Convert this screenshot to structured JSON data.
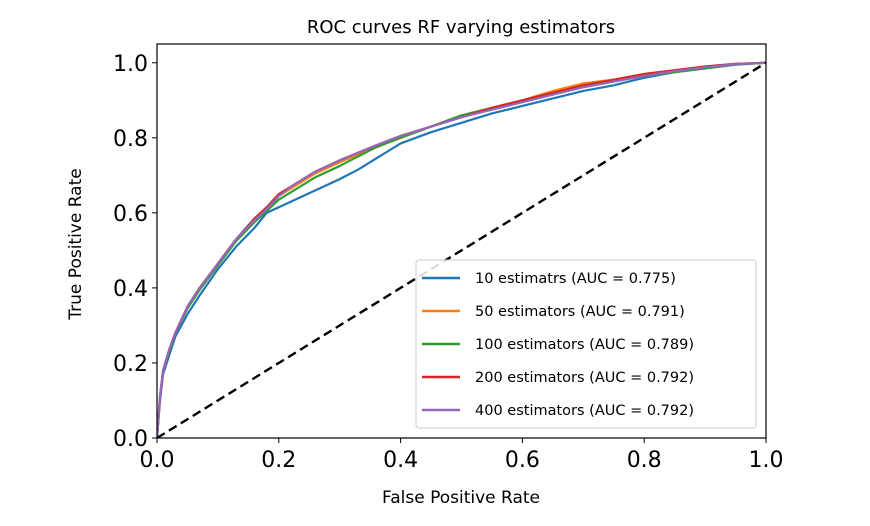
{
  "chart_data": {
    "type": "line",
    "title": "ROC curves RF varying estimators",
    "xlabel": "False Positive Rate",
    "ylabel": "True Positive Rate",
    "xlim": [
      0.0,
      1.0
    ],
    "ylim": [
      0.0,
      1.05
    ],
    "xticks": [
      "0.0",
      "0.2",
      "0.4",
      "0.6",
      "0.8",
      "1.0"
    ],
    "yticks": [
      "0.0",
      "0.2",
      "0.4",
      "0.6",
      "0.8",
      "1.0"
    ],
    "grid": false,
    "legend_position": "lower-right",
    "baseline": {
      "style": "dashed",
      "color": "#000000",
      "x": [
        0.0,
        1.0
      ],
      "y": [
        0.0,
        1.0
      ]
    },
    "series": [
      {
        "name": "10 estimatrs (AUC = 0.775)",
        "color": "#1f77b4",
        "x": [
          0,
          0.005,
          0.01,
          0.02,
          0.03,
          0.05,
          0.07,
          0.1,
          0.13,
          0.16,
          0.18,
          0.2,
          0.22,
          0.24,
          0.26,
          0.28,
          0.3,
          0.33,
          0.36,
          0.4,
          0.45,
          0.5,
          0.55,
          0.6,
          0.65,
          0.7,
          0.75,
          0.8,
          0.85,
          0.9,
          0.95,
          1.0
        ],
        "y": [
          0,
          0.1,
          0.17,
          0.22,
          0.27,
          0.33,
          0.38,
          0.45,
          0.51,
          0.56,
          0.6,
          0.615,
          0.63,
          0.645,
          0.66,
          0.675,
          0.69,
          0.715,
          0.745,
          0.785,
          0.815,
          0.84,
          0.865,
          0.885,
          0.905,
          0.925,
          0.94,
          0.96,
          0.975,
          0.985,
          0.995,
          1.0
        ]
      },
      {
        "name": "50 estimators (AUC = 0.791)",
        "color": "#ff7f0e",
        "x": [
          0,
          0.005,
          0.01,
          0.02,
          0.03,
          0.05,
          0.07,
          0.1,
          0.13,
          0.16,
          0.18,
          0.2,
          0.22,
          0.24,
          0.26,
          0.28,
          0.3,
          0.33,
          0.36,
          0.4,
          0.45,
          0.5,
          0.55,
          0.6,
          0.65,
          0.7,
          0.75,
          0.8,
          0.85,
          0.9,
          0.95,
          1.0
        ],
        "y": [
          0,
          0.11,
          0.18,
          0.235,
          0.28,
          0.35,
          0.4,
          0.465,
          0.53,
          0.58,
          0.61,
          0.645,
          0.665,
          0.685,
          0.705,
          0.72,
          0.735,
          0.755,
          0.775,
          0.8,
          0.83,
          0.855,
          0.88,
          0.9,
          0.925,
          0.945,
          0.955,
          0.97,
          0.98,
          0.99,
          0.997,
          1.0
        ]
      },
      {
        "name": "100 estimators (AUC = 0.789)",
        "color": "#2ca02c",
        "x": [
          0,
          0.005,
          0.01,
          0.02,
          0.03,
          0.05,
          0.07,
          0.1,
          0.13,
          0.16,
          0.18,
          0.2,
          0.22,
          0.24,
          0.26,
          0.28,
          0.3,
          0.33,
          0.36,
          0.4,
          0.45,
          0.5,
          0.55,
          0.6,
          0.65,
          0.7,
          0.75,
          0.8,
          0.85,
          0.9,
          0.95,
          1.0
        ],
        "y": [
          0,
          0.11,
          0.18,
          0.23,
          0.28,
          0.345,
          0.395,
          0.46,
          0.525,
          0.575,
          0.605,
          0.635,
          0.655,
          0.675,
          0.695,
          0.71,
          0.725,
          0.75,
          0.775,
          0.8,
          0.83,
          0.86,
          0.88,
          0.9,
          0.92,
          0.935,
          0.95,
          0.965,
          0.975,
          0.985,
          0.995,
          1.0
        ]
      },
      {
        "name": "200 estimators (AUC = 0.792)",
        "color": "#d62728",
        "x": [
          0,
          0.005,
          0.01,
          0.02,
          0.03,
          0.05,
          0.07,
          0.1,
          0.13,
          0.16,
          0.18,
          0.2,
          0.22,
          0.24,
          0.26,
          0.28,
          0.3,
          0.33,
          0.36,
          0.4,
          0.45,
          0.5,
          0.55,
          0.6,
          0.65,
          0.7,
          0.75,
          0.8,
          0.85,
          0.9,
          0.95,
          1.0
        ],
        "y": [
          0,
          0.11,
          0.18,
          0.235,
          0.28,
          0.35,
          0.4,
          0.465,
          0.53,
          0.585,
          0.615,
          0.65,
          0.67,
          0.69,
          0.71,
          0.725,
          0.74,
          0.76,
          0.78,
          0.805,
          0.83,
          0.855,
          0.88,
          0.9,
          0.92,
          0.94,
          0.955,
          0.97,
          0.98,
          0.99,
          0.997,
          1.0
        ]
      },
      {
        "name": "400 estimators (AUC = 0.792)",
        "color": "#9467bd",
        "x": [
          0,
          0.005,
          0.01,
          0.02,
          0.03,
          0.05,
          0.07,
          0.1,
          0.13,
          0.16,
          0.18,
          0.2,
          0.22,
          0.24,
          0.26,
          0.28,
          0.3,
          0.33,
          0.36,
          0.4,
          0.45,
          0.5,
          0.55,
          0.6,
          0.65,
          0.7,
          0.75,
          0.8,
          0.85,
          0.9,
          0.95,
          1.0
        ],
        "y": [
          0,
          0.11,
          0.18,
          0.235,
          0.28,
          0.35,
          0.4,
          0.465,
          0.53,
          0.58,
          0.61,
          0.645,
          0.67,
          0.69,
          0.71,
          0.725,
          0.74,
          0.76,
          0.78,
          0.805,
          0.83,
          0.855,
          0.875,
          0.895,
          0.915,
          0.935,
          0.95,
          0.965,
          0.978,
          0.988,
          0.996,
          1.0
        ]
      }
    ]
  }
}
